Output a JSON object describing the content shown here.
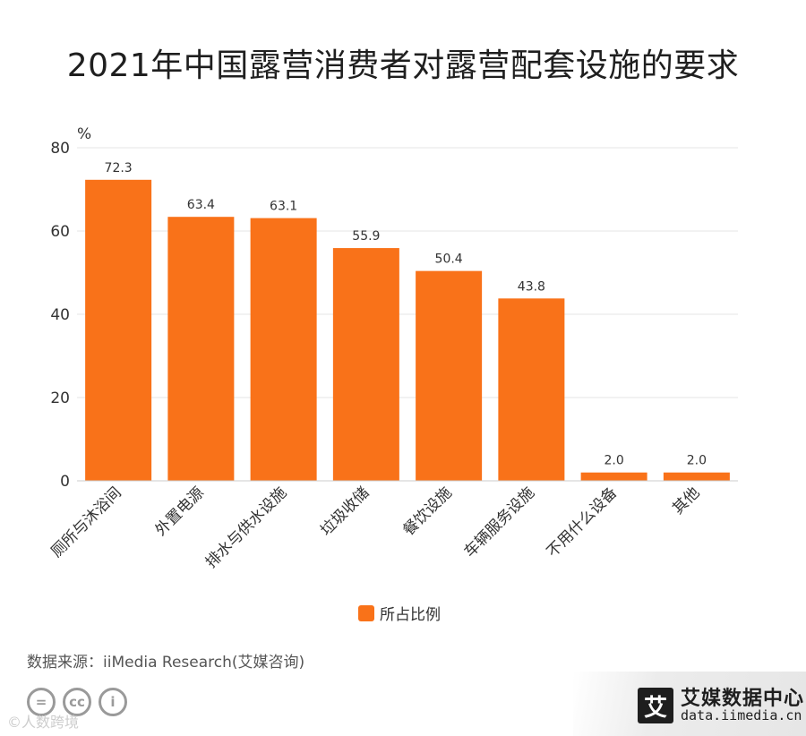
{
  "title": "2021年中国露营消费者对露营配套设施的要求",
  "source": "数据来源：iiMedia Research(艾媒咨询)",
  "watermark": "©人数跨境",
  "brand": {
    "name": "艾媒数据中心",
    "url": "data.iimedia.cn",
    "logo_char": "艾"
  },
  "cc_icons": [
    "=",
    "cc",
    "i"
  ],
  "colors": {
    "bar": "#F97219",
    "grid": "#e6e6e6",
    "axis": "#cccccc",
    "text": "#333333"
  },
  "chart_data": {
    "type": "bar",
    "unit_label": "%",
    "categories": [
      "厕所与沐浴间",
      "外置电源",
      "排水与供水设施",
      "垃圾收储",
      "餐饮设施",
      "车辆服务设施",
      "不用什么设备",
      "其他"
    ],
    "series": [
      {
        "name": "所占比例",
        "values": [
          72.3,
          63.4,
          63.1,
          55.9,
          50.4,
          43.8,
          2.0,
          2.0
        ]
      }
    ],
    "value_labels": [
      "72.3",
      "63.4",
      "63.1",
      "55.9",
      "50.4",
      "43.8",
      "2.0",
      "2.0"
    ],
    "ylim": [
      0,
      80
    ],
    "yticks": [
      0,
      20,
      40,
      60,
      80
    ],
    "grid": true,
    "legend_position": "bottom-center"
  }
}
